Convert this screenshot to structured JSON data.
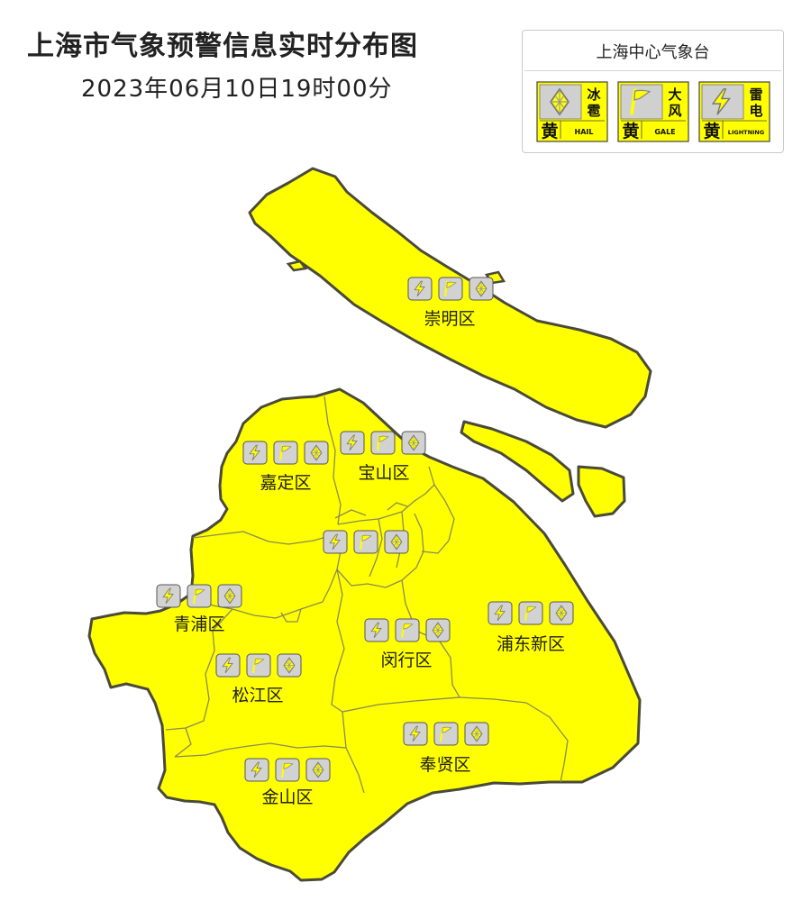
{
  "header": {
    "title": "上海市气象预警信息实时分布图",
    "datetime": "2023年06月10日19时00分"
  },
  "legend": {
    "issuer": "上海中心气象台",
    "signals": [
      {
        "id": "hail",
        "level": "黄",
        "name": "冰雹",
        "name_top": "冰",
        "name_bottom": "雹",
        "en": "HAIL",
        "icon": "hail-icon"
      },
      {
        "id": "gale",
        "level": "黄",
        "name": "大风",
        "name_top": "大",
        "name_bottom": "风",
        "en": "GALE",
        "icon": "gale-flag-icon"
      },
      {
        "id": "lightning",
        "level": "黄",
        "name": "雷电",
        "name_top": "雷",
        "name_bottom": "电",
        "en": "LIGHTNING",
        "icon": "lightning-icon"
      }
    ]
  },
  "districts": [
    {
      "id": "chongming",
      "name": "崇明区",
      "warnings": [
        "lightning",
        "gale",
        "hail"
      ]
    },
    {
      "id": "jiading",
      "name": "嘉定区",
      "warnings": [
        "lightning",
        "gale",
        "hail"
      ]
    },
    {
      "id": "baoshan",
      "name": "宝山区",
      "warnings": [
        "lightning",
        "gale",
        "hail"
      ]
    },
    {
      "id": "central",
      "name": "",
      "warnings": [
        "lightning",
        "gale",
        "hail"
      ]
    },
    {
      "id": "qingpu",
      "name": "青浦区",
      "warnings": [
        "lightning",
        "gale",
        "hail"
      ]
    },
    {
      "id": "songjiang",
      "name": "松江区",
      "warnings": [
        "lightning",
        "gale",
        "hail"
      ]
    },
    {
      "id": "minhang",
      "name": "闵行区",
      "warnings": [
        "lightning",
        "gale",
        "hail"
      ]
    },
    {
      "id": "pudong",
      "name": "浦东新区",
      "warnings": [
        "lightning",
        "gale",
        "hail"
      ]
    },
    {
      "id": "fengxian",
      "name": "奉贤区",
      "warnings": [
        "lightning",
        "gale",
        "hail"
      ]
    },
    {
      "id": "jinshan",
      "name": "金山区",
      "warnings": [
        "lightning",
        "gale",
        "hail"
      ]
    }
  ],
  "colors": {
    "land": "#ffff00",
    "border": "#4a4a3a",
    "inner_border": "#8a8a55",
    "badge_bg": "#d2d2d2",
    "warning_yellow": "#ffff00"
  }
}
